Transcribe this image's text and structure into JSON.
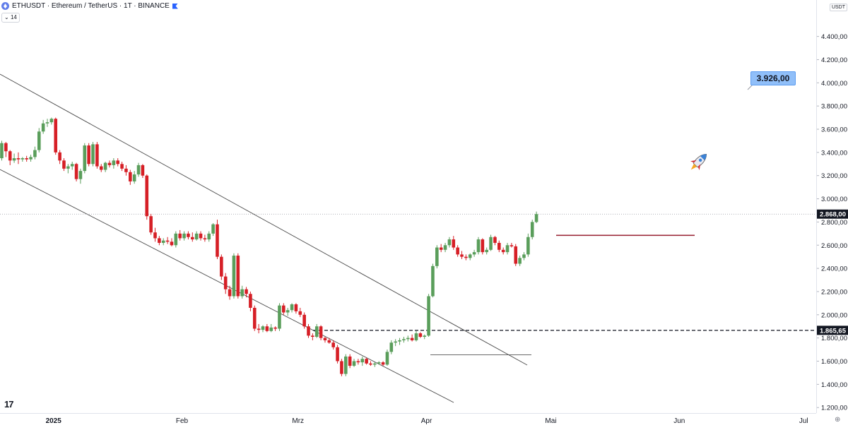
{
  "header": {
    "symbol_line": "ETHUSDT · Ethereum / TetherUS · 1T · BINANCE",
    "indicator_badge": "14"
  },
  "price_axis": {
    "currency_label": "USDT",
    "current_price_label": "2.868,00",
    "level_label": "1.865,65"
  },
  "annotation": {
    "target_label": "3.926,00",
    "icon": "rocket-icon"
  },
  "colors": {
    "bull": "#5a9e5b",
    "bear": "#d61f26",
    "resistance_line": "#9c2a3a",
    "channel_line": "#4a4a4a",
    "target_box": "#90bff9"
  },
  "chart_data": {
    "type": "candlestick",
    "title": "ETHUSDT · Ethereum / TetherUS · 1T · BINANCE",
    "ylim": [
      1150,
      4600
    ],
    "y_ticks": [
      {
        "value": 4400,
        "label": "4.400,00"
      },
      {
        "value": 4200,
        "label": "4.200,00"
      },
      {
        "value": 4000,
        "label": "4.000,00"
      },
      {
        "value": 3800,
        "label": "3.800,00"
      },
      {
        "value": 3600,
        "label": "3.600,00"
      },
      {
        "value": 3400,
        "label": "3.400,00"
      },
      {
        "value": 3200,
        "label": "3.200,00"
      },
      {
        "value": 3000,
        "label": "3.000,00"
      },
      {
        "value": 2800,
        "label": "2.800,00"
      },
      {
        "value": 2600,
        "label": "2.600,00"
      },
      {
        "value": 2400,
        "label": "2.400,00"
      },
      {
        "value": 2200,
        "label": "2.200,00"
      },
      {
        "value": 2000,
        "label": "2.000,00"
      },
      {
        "value": 1800,
        "label": "1.800,00"
      },
      {
        "value": 1600,
        "label": "1.600,00"
      },
      {
        "value": 1400,
        "label": "1.400,00"
      },
      {
        "value": 1200,
        "label": "1.200,00"
      }
    ],
    "x_ticks": [
      {
        "index": 6,
        "label": "2025",
        "bold": true
      },
      {
        "index": 37,
        "label": "Feb"
      },
      {
        "index": 65,
        "label": "Mrz"
      },
      {
        "index": 96,
        "label": "Apr"
      },
      {
        "index": 126,
        "label": "Mai"
      },
      {
        "index": 157,
        "label": "Jun"
      },
      {
        "index": 187,
        "label": "Jul"
      }
    ],
    "x_index_range": [
      -0.7,
      195.5
    ],
    "candles_ohlc": [
      [
        3350,
        3500,
        3330,
        3480
      ],
      [
        3480,
        3490,
        3360,
        3410
      ],
      [
        3410,
        3420,
        3290,
        3330
      ],
      [
        3330,
        3390,
        3310,
        3350
      ],
      [
        3350,
        3400,
        3300,
        3340
      ],
      [
        3340,
        3360,
        3320,
        3350
      ],
      [
        3350,
        3370,
        3320,
        3340
      ],
      [
        3340,
        3380,
        3320,
        3360
      ],
      [
        3360,
        3450,
        3340,
        3420
      ],
      [
        3420,
        3610,
        3400,
        3580
      ],
      [
        3580,
        3680,
        3560,
        3650
      ],
      [
        3650,
        3690,
        3620,
        3660
      ],
      [
        3660,
        3700,
        3640,
        3690
      ],
      [
        3690,
        3700,
        3380,
        3400
      ],
      [
        3400,
        3420,
        3300,
        3330
      ],
      [
        3330,
        3350,
        3240,
        3260
      ],
      [
        3260,
        3300,
        3220,
        3280
      ],
      [
        3280,
        3320,
        3250,
        3300
      ],
      [
        3300,
        3310,
        3150,
        3170
      ],
      [
        3170,
        3260,
        3130,
        3240
      ],
      [
        3240,
        3480,
        3220,
        3460
      ],
      [
        3460,
        3480,
        3280,
        3300
      ],
      [
        3300,
        3490,
        3280,
        3470
      ],
      [
        3470,
        3490,
        3260,
        3280
      ],
      [
        3280,
        3300,
        3230,
        3250
      ],
      [
        3250,
        3320,
        3230,
        3310
      ],
      [
        3310,
        3330,
        3270,
        3290
      ],
      [
        3290,
        3350,
        3260,
        3330
      ],
      [
        3330,
        3350,
        3280,
        3300
      ],
      [
        3300,
        3320,
        3240,
        3260
      ],
      [
        3260,
        3290,
        3200,
        3230
      ],
      [
        3230,
        3250,
        3120,
        3150
      ],
      [
        3150,
        3240,
        3130,
        3210
      ],
      [
        3210,
        3310,
        3190,
        3290
      ],
      [
        3290,
        3300,
        3180,
        3200
      ],
      [
        3200,
        3210,
        2820,
        2850
      ],
      [
        2850,
        2870,
        2690,
        2710
      ],
      [
        2710,
        2750,
        2630,
        2660
      ],
      [
        2660,
        2680,
        2600,
        2620
      ],
      [
        2620,
        2660,
        2600,
        2640
      ],
      [
        2640,
        2670,
        2610,
        2630
      ],
      [
        2630,
        2660,
        2590,
        2600
      ],
      [
        2600,
        2720,
        2580,
        2700
      ],
      [
        2700,
        2730,
        2640,
        2660
      ],
      [
        2660,
        2720,
        2640,
        2700
      ],
      [
        2700,
        2720,
        2650,
        2670
      ],
      [
        2670,
        2710,
        2630,
        2650
      ],
      [
        2650,
        2720,
        2640,
        2700
      ],
      [
        2700,
        2720,
        2640,
        2660
      ],
      [
        2660,
        2690,
        2630,
        2650
      ],
      [
        2650,
        2720,
        2630,
        2700
      ],
      [
        2700,
        2790,
        2680,
        2780
      ],
      [
        2780,
        2820,
        2480,
        2500
      ],
      [
        2500,
        2520,
        2300,
        2330
      ],
      [
        2330,
        2360,
        2180,
        2220
      ],
      [
        2220,
        2250,
        2130,
        2160
      ],
      [
        2160,
        2530,
        2140,
        2510
      ],
      [
        2510,
        2530,
        2140,
        2160
      ],
      [
        2160,
        2250,
        2140,
        2220
      ],
      [
        2220,
        2240,
        2150,
        2180
      ],
      [
        2180,
        2200,
        2030,
        2060
      ],
      [
        2060,
        2080,
        1860,
        1880
      ],
      [
        1880,
        1920,
        1840,
        1870
      ],
      [
        1870,
        1910,
        1850,
        1900
      ],
      [
        1900,
        1920,
        1850,
        1860
      ],
      [
        1860,
        1920,
        1850,
        1890
      ],
      [
        1890,
        1900,
        1860,
        1880
      ],
      [
        1880,
        2100,
        1860,
        2080
      ],
      [
        2080,
        2100,
        2000,
        2020
      ],
      [
        2020,
        2060,
        1990,
        2040
      ],
      [
        2040,
        2100,
        2020,
        2090
      ],
      [
        2090,
        2100,
        2010,
        2030
      ],
      [
        2030,
        2060,
        1980,
        2000
      ],
      [
        2000,
        2020,
        1880,
        1900
      ],
      [
        1900,
        1920,
        1800,
        1820
      ],
      [
        1820,
        1840,
        1780,
        1810
      ],
      [
        1810,
        1920,
        1800,
        1900
      ],
      [
        1900,
        1910,
        1780,
        1800
      ],
      [
        1800,
        1810,
        1760,
        1780
      ],
      [
        1780,
        1800,
        1750,
        1760
      ],
      [
        1760,
        1780,
        1700,
        1720
      ],
      [
        1720,
        1740,
        1580,
        1600
      ],
      [
        1600,
        1620,
        1470,
        1490
      ],
      [
        1490,
        1660,
        1470,
        1640
      ],
      [
        1640,
        1660,
        1540,
        1560
      ],
      [
        1560,
        1620,
        1550,
        1600
      ],
      [
        1600,
        1620,
        1570,
        1590
      ],
      [
        1590,
        1640,
        1560,
        1620
      ],
      [
        1620,
        1630,
        1570,
        1580
      ],
      [
        1580,
        1600,
        1560,
        1570
      ],
      [
        1570,
        1590,
        1550,
        1580
      ],
      [
        1580,
        1600,
        1570,
        1590
      ],
      [
        1590,
        1600,
        1560,
        1570
      ],
      [
        1570,
        1700,
        1560,
        1680
      ],
      [
        1680,
        1780,
        1660,
        1760
      ],
      [
        1760,
        1790,
        1730,
        1770
      ],
      [
        1770,
        1800,
        1740,
        1780
      ],
      [
        1780,
        1810,
        1760,
        1790
      ],
      [
        1790,
        1820,
        1770,
        1800
      ],
      [
        1800,
        1830,
        1770,
        1780
      ],
      [
        1780,
        1860,
        1770,
        1840
      ],
      [
        1840,
        1850,
        1800,
        1810
      ],
      [
        1810,
        1830,
        1790,
        1820
      ],
      [
        1820,
        2180,
        1810,
        2160
      ],
      [
        2160,
        2440,
        2150,
        2420
      ],
      [
        2420,
        2600,
        2400,
        2580
      ],
      [
        2580,
        2610,
        2540,
        2560
      ],
      [
        2560,
        2620,
        2540,
        2600
      ],
      [
        2600,
        2670,
        2580,
        2650
      ],
      [
        2650,
        2680,
        2560,
        2580
      ],
      [
        2580,
        2600,
        2500,
        2520
      ],
      [
        2520,
        2550,
        2480,
        2500
      ],
      [
        2500,
        2520,
        2470,
        2490
      ],
      [
        2490,
        2530,
        2470,
        2520
      ],
      [
        2520,
        2560,
        2500,
        2540
      ],
      [
        2540,
        2670,
        2520,
        2650
      ],
      [
        2650,
        2660,
        2520,
        2540
      ],
      [
        2540,
        2580,
        2520,
        2560
      ],
      [
        2560,
        2690,
        2550,
        2670
      ],
      [
        2670,
        2680,
        2600,
        2620
      ],
      [
        2620,
        2640,
        2540,
        2560
      ],
      [
        2560,
        2580,
        2520,
        2540
      ],
      [
        2540,
        2620,
        2520,
        2600
      ],
      [
        2600,
        2620,
        2580,
        2590
      ],
      [
        2590,
        2610,
        2420,
        2440
      ],
      [
        2440,
        2510,
        2420,
        2490
      ],
      [
        2490,
        2540,
        2470,
        2520
      ],
      [
        2520,
        2700,
        2500,
        2670
      ],
      [
        2670,
        2820,
        2650,
        2800
      ],
      [
        2800,
        2890,
        2790,
        2868
      ]
    ]
  }
}
